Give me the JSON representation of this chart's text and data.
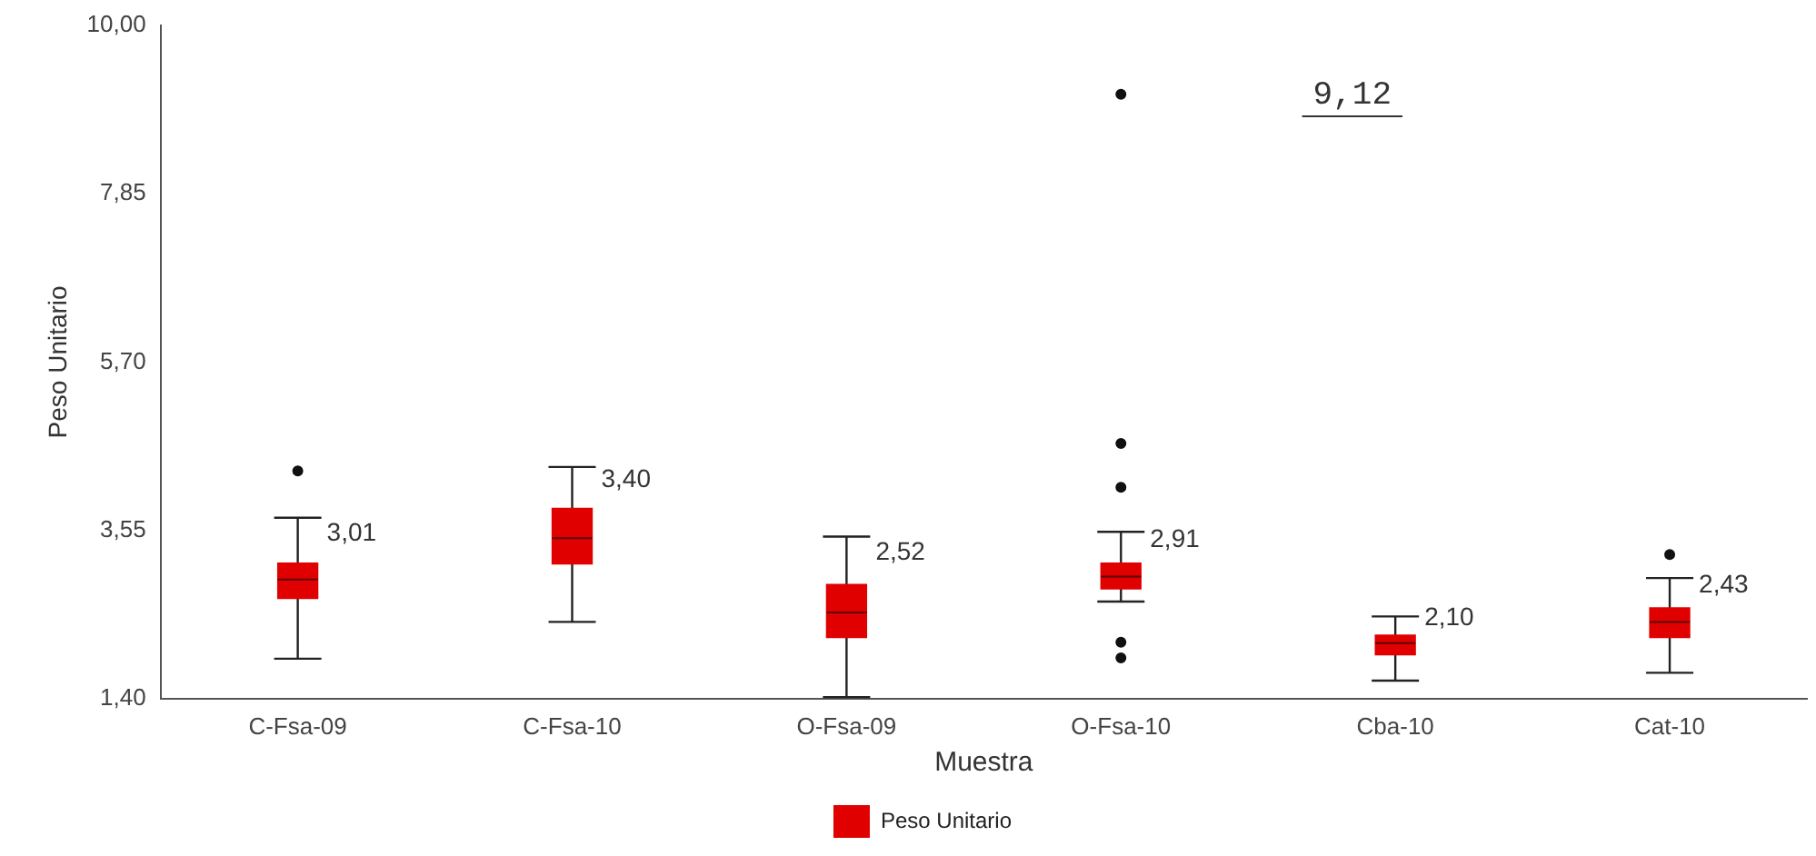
{
  "chart_data": {
    "type": "box",
    "xlabel": "Muestra",
    "ylabel": "Peso Unitario",
    "categories": [
      "C-Fsa-09",
      "C-Fsa-10",
      "O-Fsa-09",
      "O-Fsa-10",
      "Cba-10",
      "Cat-10"
    ],
    "ylim": [
      1.4,
      10
    ],
    "yticks": [
      {
        "value": 1.4,
        "label": "1,40"
      },
      {
        "value": 3.55,
        "label": "3,55"
      },
      {
        "value": 5.7,
        "label": "5,70"
      },
      {
        "value": 7.85,
        "label": "7,85"
      },
      {
        "value": 10,
        "label": "10,00"
      }
    ],
    "grid": false,
    "legend": "bottom",
    "series": [
      {
        "name": "Peso Unitario",
        "color": "#e00000",
        "boxes": [
          {
            "low": 1.91,
            "q1": 2.68,
            "median": 2.92,
            "q3": 3.13,
            "high": 3.71,
            "mean": 3.01,
            "outliers": [
              4.31
            ]
          },
          {
            "low": 2.38,
            "q1": 3.12,
            "median": 3.45,
            "q3": 3.83,
            "high": 4.36,
            "mean": 3.4
          },
          {
            "low": 1.42,
            "q1": 2.18,
            "median": 2.5,
            "q3": 2.86,
            "high": 3.47,
            "mean": 2.52
          },
          {
            "low": 2.64,
            "q1": 2.8,
            "median": 2.96,
            "q3": 3.13,
            "high": 3.53,
            "mean": 2.91,
            "outliers": [
              9.12,
              4.66,
              4.1,
              2.12,
              1.92
            ]
          },
          {
            "low": 1.63,
            "q1": 1.96,
            "median": 2.11,
            "q3": 2.21,
            "high": 2.45,
            "mean": 2.1
          },
          {
            "low": 1.73,
            "q1": 2.18,
            "median": 2.38,
            "q3": 2.56,
            "high": 2.94,
            "mean": 2.43,
            "outliers": [
              3.24
            ]
          }
        ]
      }
    ],
    "annotations": [
      "3,01",
      "3,40",
      "2,52",
      "2,91",
      "2,10",
      "2,43",
      "9,12"
    ]
  }
}
